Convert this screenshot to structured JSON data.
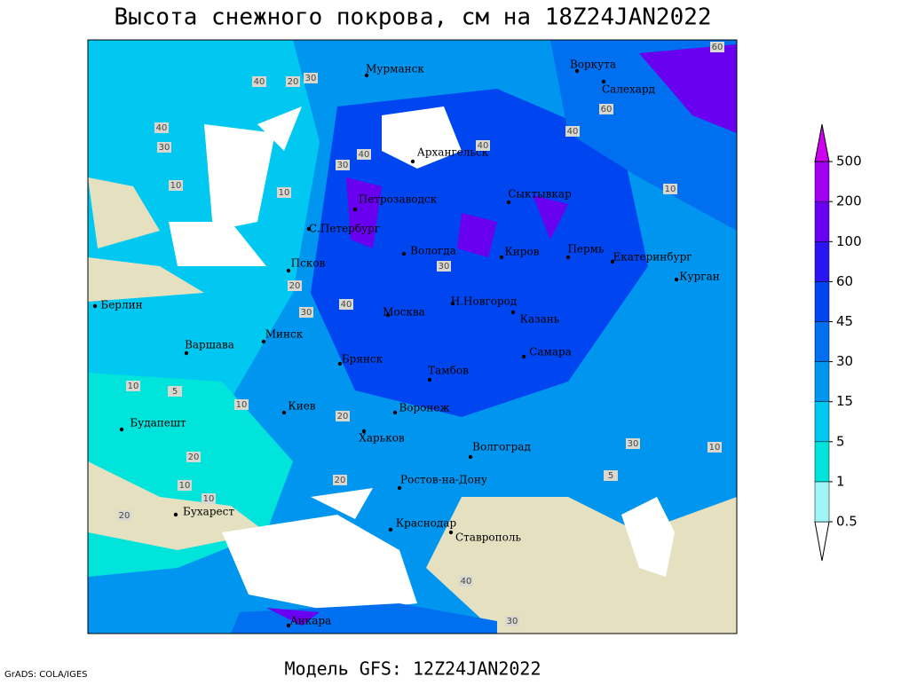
{
  "header": {
    "title": "Высота снежного покрова, см на 18Z24JAN2022"
  },
  "footer": {
    "model": "Модель GFS: 12Z24JAN2022",
    "credit": "GrADS: COLA/IGES"
  },
  "cities": [
    "Мурманск",
    "Воркута",
    "Салехард",
    "Архангельск",
    "Петрозаводск",
    "Сыктывкар",
    "С.Петербург",
    "Вологда",
    "Киров",
    "Пермь",
    "Екатеринбург",
    "Псков",
    "Курган",
    "Берлин",
    "Н.Новгород",
    "Москва",
    "Казань",
    "Минск",
    "Варшава",
    "Самара",
    "Брянск",
    "Тамбов",
    "Киев",
    "Воронеж",
    "Будапешт",
    "Харьков",
    "Волгоград",
    "Ростов-на-Дону",
    "Бухарест",
    "Краснодар",
    "Ставрополь",
    "Анкара"
  ],
  "contour_labels": [
    60,
    40,
    20,
    30,
    40,
    60,
    40,
    30,
    10,
    10,
    40,
    30,
    40,
    10,
    20,
    30,
    40,
    30,
    10,
    5,
    10,
    20,
    20,
    10,
    20,
    30,
    10,
    5,
    40,
    20,
    10,
    30
  ],
  "legend": {
    "levels": [
      0.5,
      1,
      5,
      15,
      30,
      45,
      60,
      100,
      200,
      500
    ],
    "colors": [
      "#ffffff",
      "#9ff5f5",
      "#00e4dc",
      "#00c8f0",
      "#0096f0",
      "#0070f0",
      "#0046f0",
      "#2a14f0",
      "#6a00f0",
      "#a000f0",
      "#d000f0"
    ]
  }
}
